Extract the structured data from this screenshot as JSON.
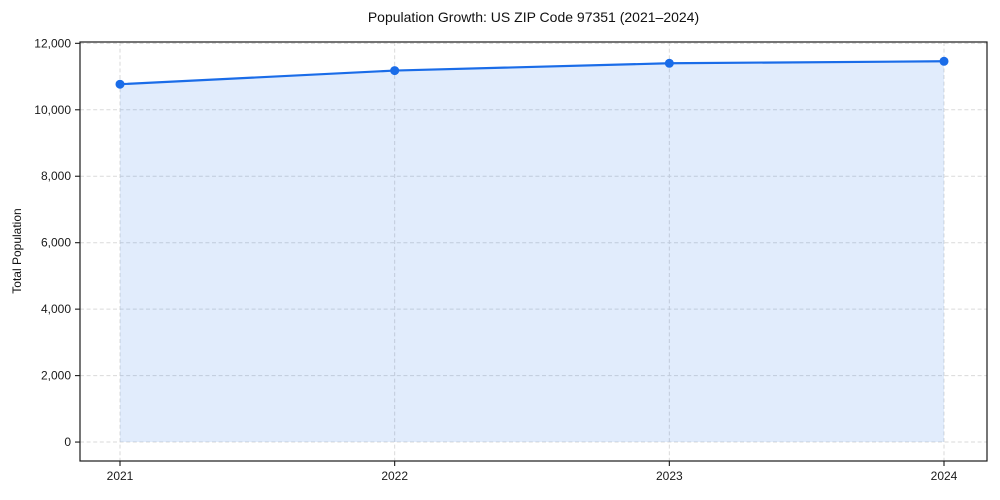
{
  "figure": {
    "title": "Population Growth: US ZIP Code 97351 (2021–2024)",
    "ylabel": "Total Population"
  },
  "chart_data": {
    "type": "line",
    "title": "Population Growth: US ZIP Code 97351 (2021–2024)",
    "xlabel": "",
    "ylabel": "Total Population",
    "x": [
      2021,
      2022,
      2023,
      2024
    ],
    "x_tick_labels": [
      "2021",
      "2022",
      "2023",
      "2024"
    ],
    "series": [
      {
        "name": "Total Population",
        "values": [
          10770,
          11180,
          11400,
          11460
        ]
      }
    ],
    "y_ticks": [
      0,
      2000,
      4000,
      6000,
      8000,
      10000,
      12000
    ],
    "y_tick_labels": [
      "0",
      "2,000",
      "4,000",
      "6,000",
      "8,000",
      "10,000",
      "12,000"
    ],
    "ylim": [
      -570,
      12040
    ],
    "grid": true,
    "grid_style": "dashed",
    "legend": "none",
    "marker": "circle",
    "fill_to_zero": true,
    "colors": {
      "line": "#1a6ce8",
      "marker": "#1a6ce8",
      "area_fill": "rgba(26,108,232,0.13)",
      "grid": "#dadada",
      "spine": "#1a1a1a",
      "text": "#111111"
    }
  }
}
